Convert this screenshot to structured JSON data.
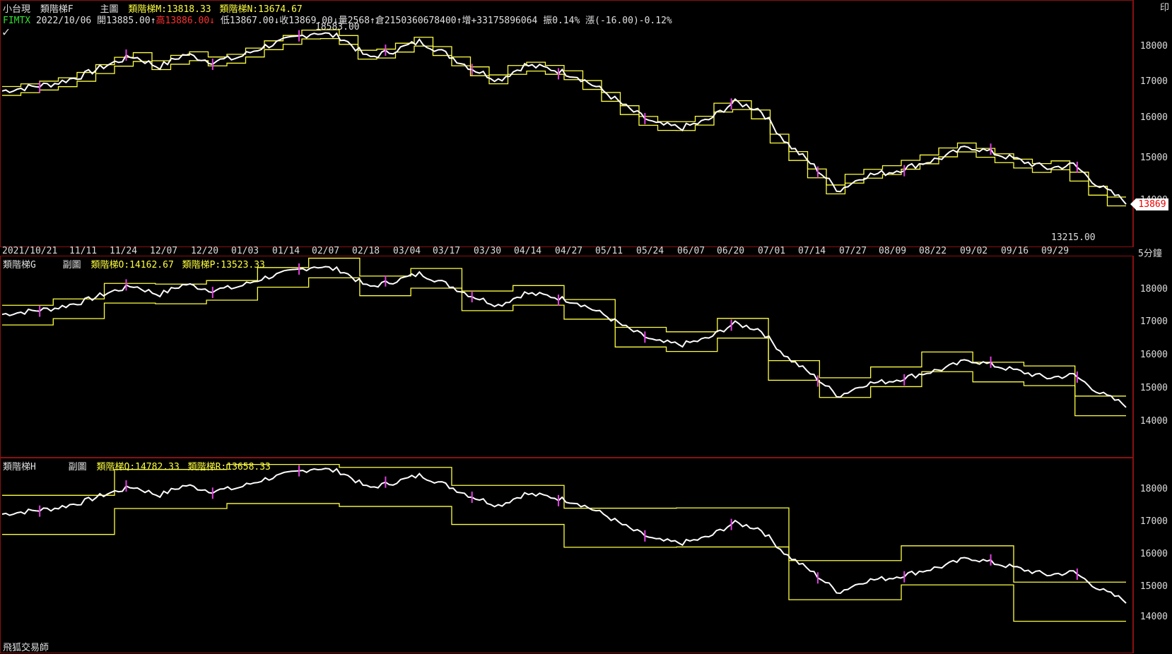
{
  "header": {
    "title": "小台現",
    "indicator_f": "類階梯F",
    "pane_label": "主圖",
    "m_label": "類階梯M:13818.33",
    "n_label": "類階梯N:13674.67",
    "symbol": "FIMTX",
    "date": "2022/10/06",
    "open": "開13885.00",
    "high": "高13886.00",
    "low": "低13867.00",
    "close": "收13869.00",
    "volume": "量2568",
    "oi": "倉2150360678400",
    "change_oi": "增+33175896064",
    "amp": "振0.14%",
    "chg": "漲(-16.00)-0.12%",
    "corner": "印"
  },
  "annotations": {
    "high": "18583.00",
    "low": "13215.00",
    "last_price": "13869"
  },
  "main_yaxis": [
    "18000",
    "17000",
    "16000",
    "15000",
    "14000"
  ],
  "xaxis": {
    "dates": [
      "2021/10/21",
      "11/11",
      "11/24",
      "12/07",
      "12/20",
      "01/03",
      "01/14",
      "02/07",
      "02/18",
      "03/04",
      "03/17",
      "03/30",
      "04/14",
      "04/27",
      "05/11",
      "05/24",
      "06/07",
      "06/20",
      "07/01",
      "07/14",
      "07/27",
      "08/09",
      "08/22",
      "09/02",
      "09/16",
      "09/29"
    ],
    "period": "5分鐘"
  },
  "pane_g": {
    "name": "類階梯G",
    "pane_label": "副圖",
    "o_label": "類階梯O:14162.67",
    "p_label": "類階梯P:13523.33",
    "yaxis": [
      "18000",
      "17000",
      "16000",
      "15000",
      "14000"
    ]
  },
  "pane_h": {
    "name": "類階梯H",
    "pane_label": "副圖",
    "q_label": "類階梯Q:14782.33",
    "r_label": "類階梯R:13658.33",
    "yaxis": [
      "18000",
      "17000",
      "16000",
      "15000",
      "14000"
    ]
  },
  "footer": {
    "app": "飛狐交易師"
  },
  "colors": {
    "price": "#ffffff",
    "ladder": "#ffff40",
    "border": "#8a1010",
    "accent": "#e040e0"
  },
  "price_series": [
    16900,
    17000,
    17100,
    17300,
    17600,
    17850,
    17550,
    17900,
    17700,
    17800,
    18100,
    18300,
    18500,
    18350,
    17800,
    18000,
    18250,
    17900,
    17500,
    17200,
    17600,
    17500,
    17300,
    16900,
    16400,
    16000,
    15900,
    16100,
    16600,
    16400,
    15500,
    14900,
    14200,
    14600,
    14700,
    14900,
    15100,
    15400,
    15200,
    15000,
    14800,
    14900,
    14300,
    13900
  ]
}
